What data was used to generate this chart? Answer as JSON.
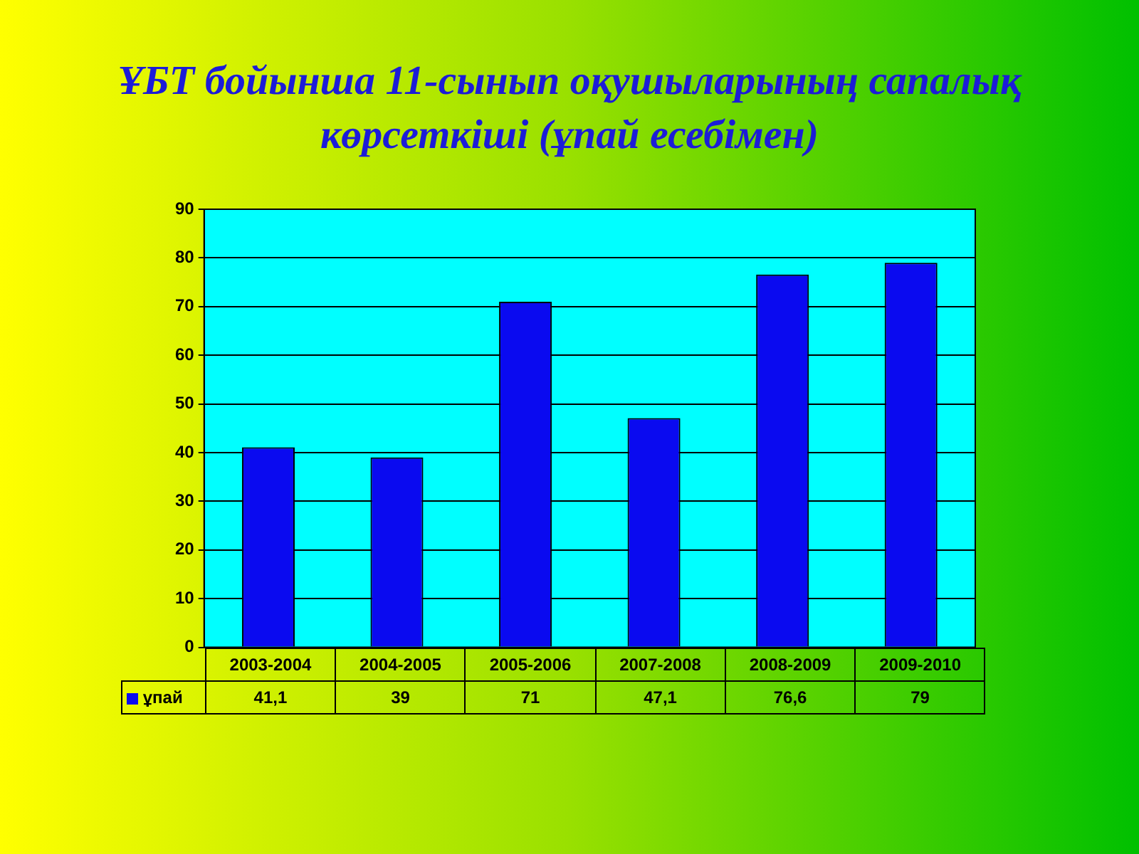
{
  "chart_data": {
    "type": "bar",
    "title": "ҰБТ бойынша 11-сынып оқушыларының сапалық көрсеткіші (ұпай есебімен)",
    "categories": [
      "2003-2004",
      "2004-2005",
      "2005-2006",
      "2007-2008",
      "2008-2009",
      "2009-2010"
    ],
    "series": [
      {
        "name": "ұпай",
        "color": "#0a0af0",
        "values": [
          41.1,
          39,
          71,
          47.1,
          76.6,
          79
        ],
        "value_labels": [
          "41,1",
          "39",
          "71",
          "47,1",
          "76,6",
          "79"
        ]
      }
    ],
    "ylim": [
      0,
      90
    ],
    "yticks": [
      0,
      10,
      20,
      30,
      40,
      50,
      60,
      70,
      80,
      90
    ],
    "grid": "y",
    "legend": "bottom"
  }
}
